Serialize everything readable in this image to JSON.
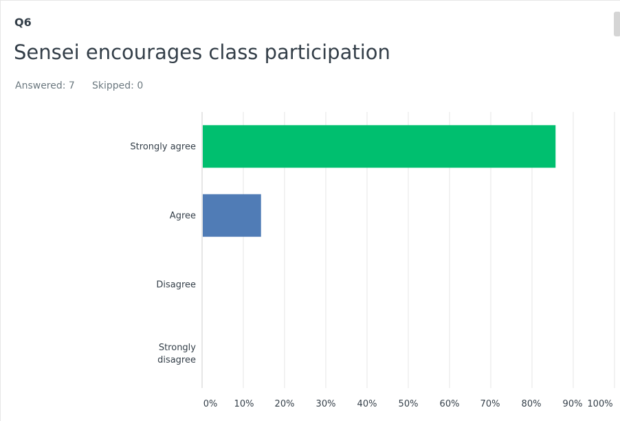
{
  "question": {
    "number": "Q6",
    "title": "Sensei encourages class participation",
    "answered": "Answered: 7",
    "skipped": "Skipped: 0"
  },
  "colors": {
    "strongly_agree": "#00bf6f",
    "agree": "#507cb6",
    "grid": "#e6e6e6",
    "axis": "#cccccc"
  },
  "chart_data": {
    "type": "bar",
    "orientation": "horizontal",
    "categories": [
      [
        "Strongly agree"
      ],
      [
        "Agree"
      ],
      [
        "Disagree"
      ],
      [
        "Strongly",
        "disagree"
      ]
    ],
    "values": [
      85.71,
      14.29,
      0,
      0
    ],
    "xlim": [
      0,
      100
    ],
    "xticks": [
      "0%",
      "10%",
      "20%",
      "30%",
      "40%",
      "50%",
      "60%",
      "70%",
      "80%",
      "90%",
      "100%"
    ],
    "grid": true,
    "title": "",
    "xlabel": "",
    "ylabel": ""
  }
}
